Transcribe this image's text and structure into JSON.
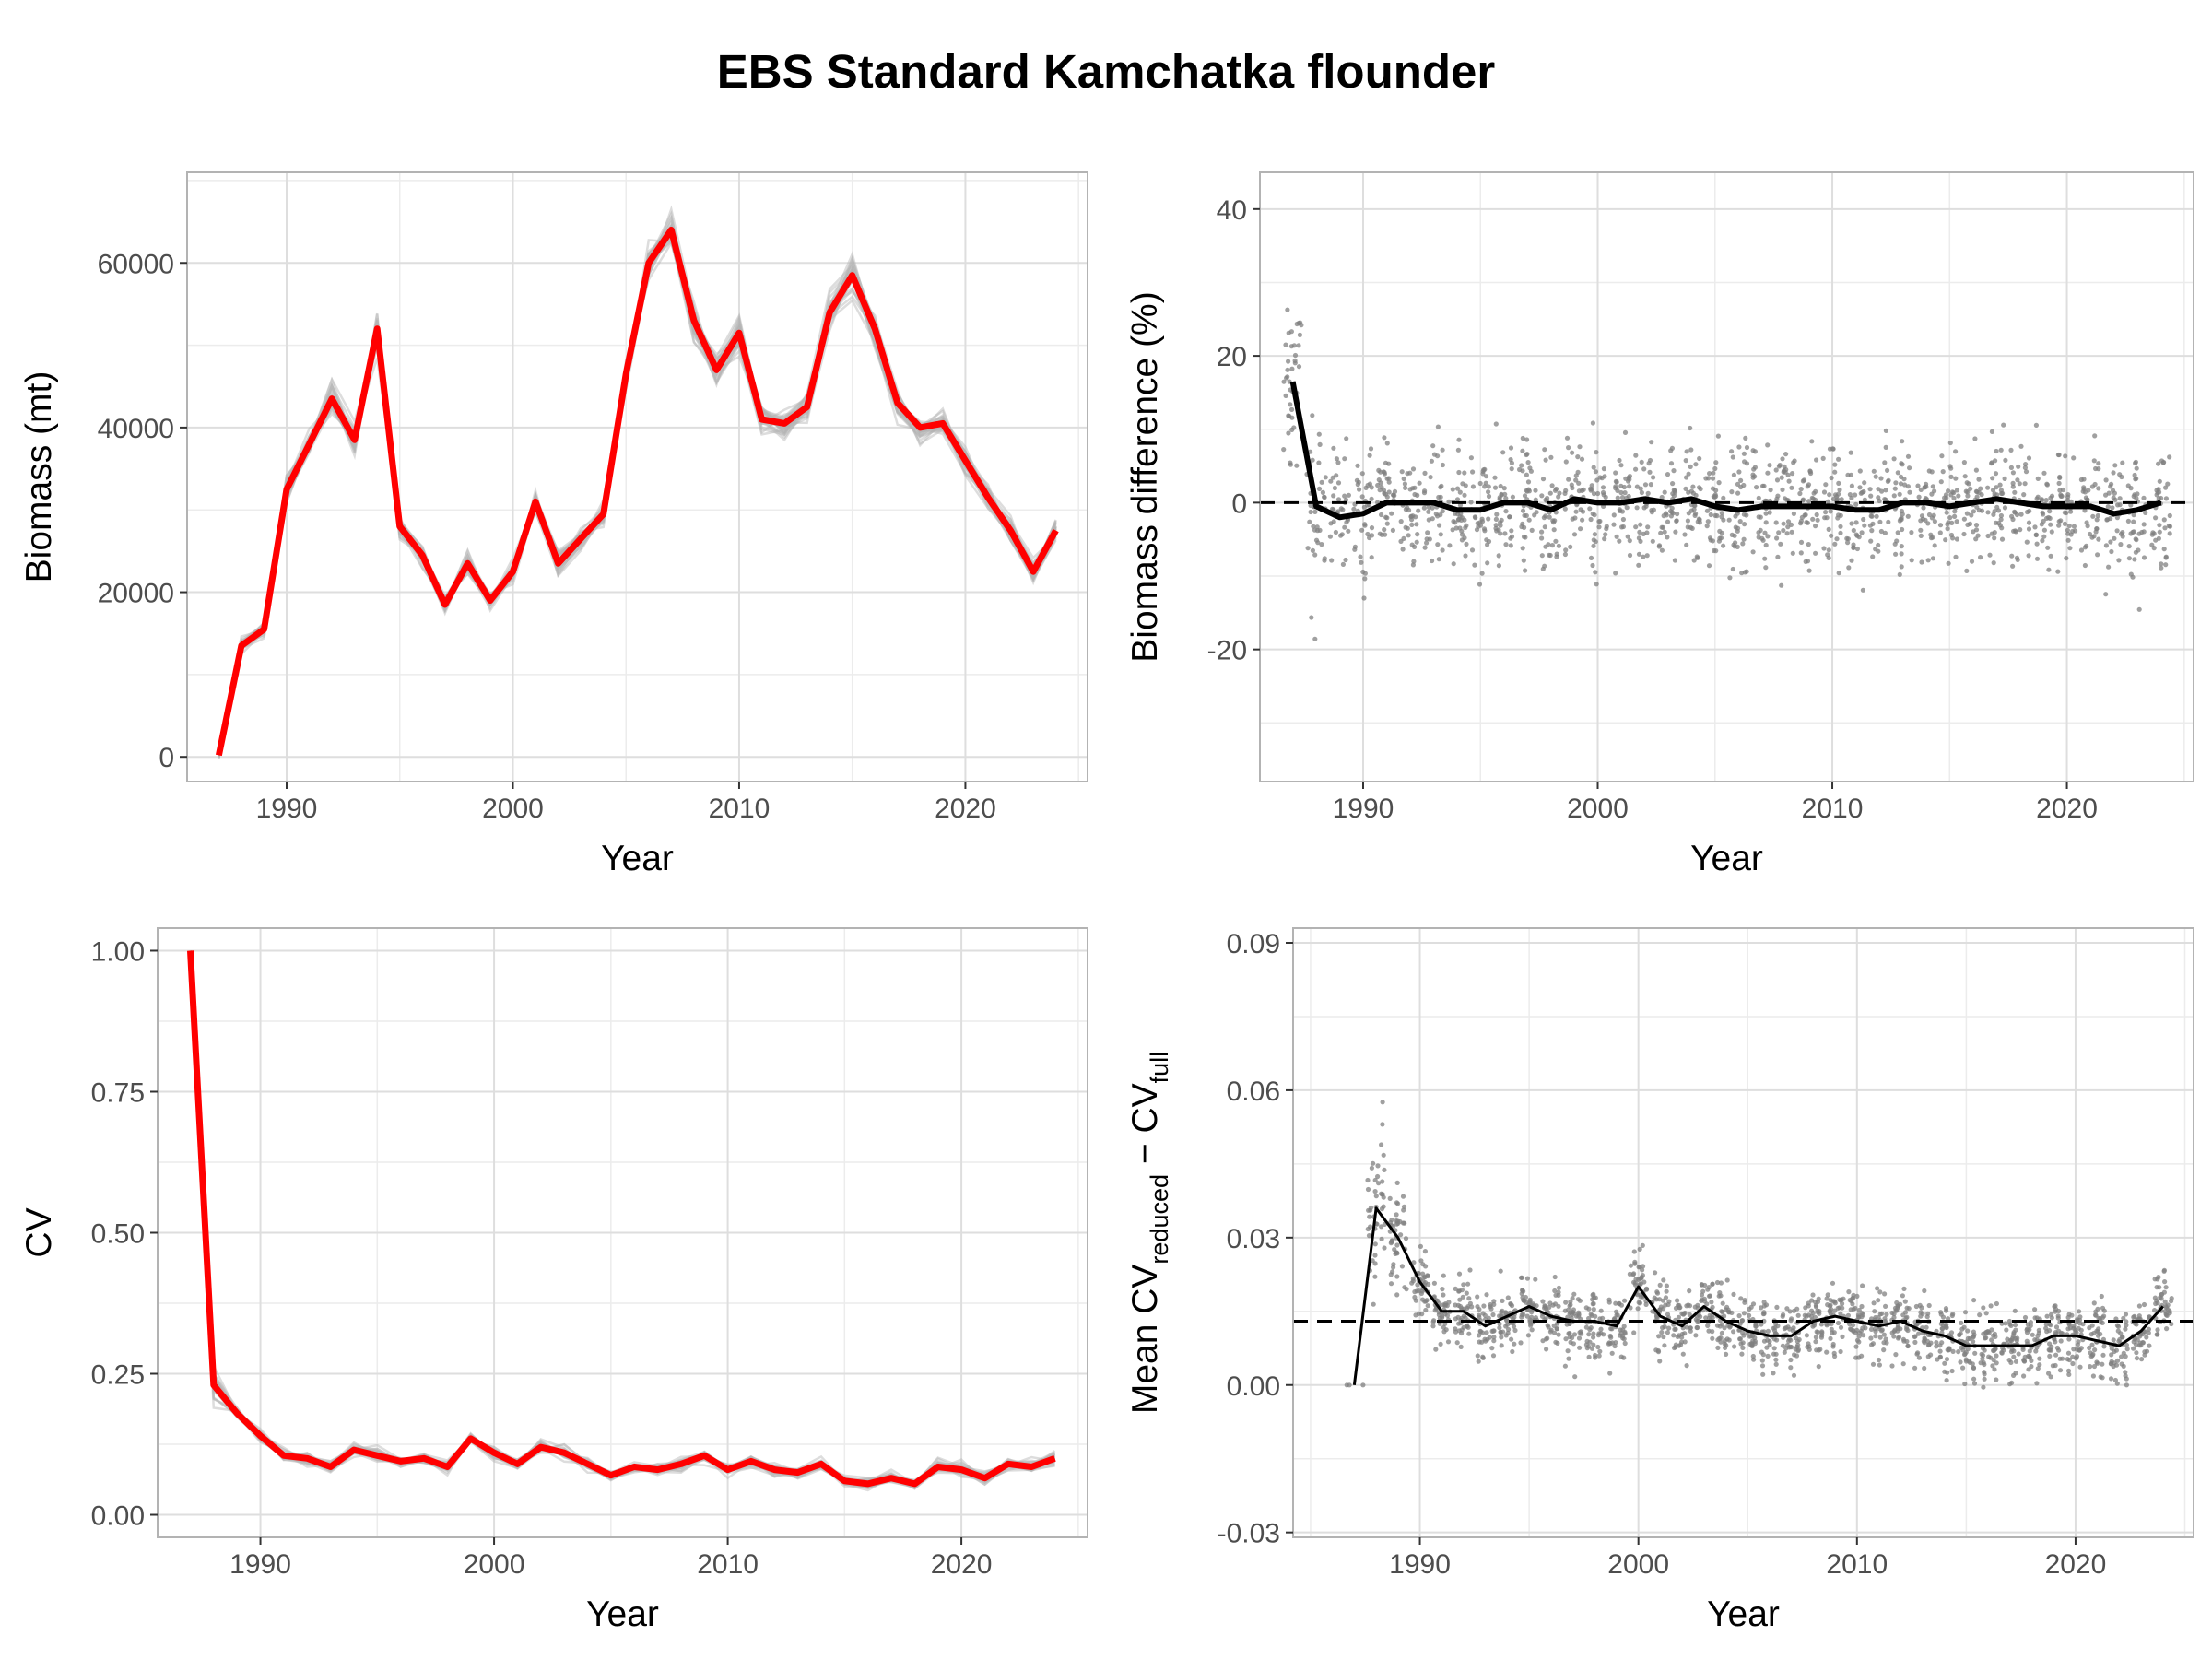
{
  "title": "EBS Standard Kamchatka flounder",
  "chart_data": [
    {
      "id": "biomass",
      "type": "line",
      "xlabel": "Year",
      "ylabel": "Biomass (mt)",
      "xlim": [
        1985.6,
        2025.4
      ],
      "ylim": [
        -3000,
        71000
      ],
      "xticks": [
        1990,
        2000,
        2010,
        2020
      ],
      "yticks": [
        0,
        20000,
        40000,
        60000
      ],
      "ytick_labels": [
        "0",
        "20000",
        "40000",
        "60000"
      ],
      "colors": {
        "highlight": "#ff0000",
        "replicates": "#b3b3b3"
      },
      "replicate_count": 30,
      "series": [
        {
          "x": [
            1987,
            1988,
            1989,
            1990,
            1991,
            1992,
            1993,
            1994,
            1995,
            1996,
            1997,
            1998,
            1999,
            2000,
            2001,
            2002,
            2003,
            2004,
            2005,
            2006,
            2007,
            2008,
            2009,
            2010,
            2011,
            2012,
            2013,
            2014,
            2015,
            2016,
            2017,
            2018,
            2019,
            2020,
            2021,
            2022,
            2023,
            2024
          ],
          "y": [
            200,
            13500,
            15500,
            32500,
            38000,
            43500,
            38500,
            52000,
            28000,
            24500,
            18500,
            23500,
            19000,
            22500,
            31000,
            23500,
            26500,
            29500,
            46500,
            60000,
            64000,
            53000,
            47000,
            51500,
            41000,
            40500,
            42500,
            54000,
            58500,
            52000,
            43000,
            40000,
            40500,
            36000,
            31500,
            27500,
            22500,
            27500
          ]
        }
      ]
    },
    {
      "id": "biomass-diff",
      "type": "scatter",
      "xlabel": "Year",
      "ylabel": "Biomass difference (%)",
      "xlim": [
        1985.6,
        2025.4
      ],
      "ylim": [
        -38,
        45
      ],
      "xticks": [
        1990,
        2000,
        2010,
        2020
      ],
      "yticks": [
        -20,
        0,
        20,
        40
      ],
      "ytick_labels": [
        "-20",
        "0",
        "20",
        "40"
      ],
      "reference_line": 0,
      "colors": {
        "points": "#808080",
        "mean": "#000000"
      },
      "series": [
        {
          "x": [
            1987,
            1988,
            1989,
            1990,
            1991,
            1992,
            1993,
            1994,
            1995,
            1996,
            1997,
            1998,
            1999,
            2000,
            2001,
            2002,
            2003,
            2004,
            2005,
            2006,
            2007,
            2008,
            2009,
            2010,
            2011,
            2012,
            2013,
            2014,
            2015,
            2016,
            2017,
            2018,
            2019,
            2020,
            2021,
            2022,
            2023,
            2024
          ],
          "y": [
            16.5,
            -0.5,
            -2,
            -1.5,
            0,
            0,
            0,
            -1,
            -1,
            0,
            0,
            -1,
            0.5,
            0,
            0,
            0.5,
            0,
            0.5,
            -0.5,
            -1,
            -0.5,
            -0.5,
            -0.5,
            -0.5,
            -1,
            -1,
            0,
            0,
            -0.5,
            0,
            0.5,
            0,
            -0.5,
            -0.5,
            -0.5,
            -1.5,
            -1,
            0
          ]
        }
      ]
    },
    {
      "id": "cv",
      "type": "line",
      "xlabel": "Year",
      "ylabel": "CV",
      "xlim": [
        1985.6,
        2025.4
      ],
      "ylim": [
        -0.04,
        1.04
      ],
      "xticks": [
        1990,
        2000,
        2010,
        2020
      ],
      "yticks": [
        0,
        0.25,
        0.5,
        0.75,
        1.0
      ],
      "ytick_labels": [
        "0.00",
        "0.25",
        "0.50",
        "0.75",
        "1.00"
      ],
      "colors": {
        "highlight": "#ff0000",
        "replicates": "#b3b3b3"
      },
      "series": [
        {
          "x": [
            1987,
            1988,
            1989,
            1990,
            1991,
            1992,
            1993,
            1994,
            1995,
            1996,
            1997,
            1998,
            1999,
            2000,
            2001,
            2002,
            2003,
            2004,
            2005,
            2006,
            2007,
            2008,
            2009,
            2010,
            2011,
            2012,
            2013,
            2014,
            2015,
            2016,
            2017,
            2018,
            2019,
            2020,
            2021,
            2022,
            2023,
            2024
          ],
          "y": [
            1.0,
            0.23,
            0.18,
            0.14,
            0.105,
            0.1,
            0.085,
            0.115,
            0.105,
            0.095,
            0.1,
            0.085,
            0.135,
            0.11,
            0.09,
            0.12,
            0.11,
            0.09,
            0.07,
            0.085,
            0.08,
            0.09,
            0.105,
            0.08,
            0.095,
            0.08,
            0.075,
            0.09,
            0.06,
            0.055,
            0.065,
            0.055,
            0.085,
            0.08,
            0.065,
            0.09,
            0.085,
            0.1
          ]
        }
      ]
    },
    {
      "id": "mean-cv-diff",
      "type": "scatter",
      "xlabel": "Year",
      "ylabel_main": "Mean CV",
      "ylabel_sub1": "reduced",
      "ylabel_minus": " − CV",
      "ylabel_sub2": "full",
      "xlim": [
        1984.2,
        2025.4
      ],
      "ylim": [
        -0.031,
        0.093
      ],
      "xticks": [
        1990,
        2000,
        2010,
        2020
      ],
      "yticks": [
        -0.03,
        0,
        0.03,
        0.06,
        0.09
      ],
      "ytick_labels": [
        "-0.03",
        "0.00",
        "0.03",
        "0.06",
        "0.09"
      ],
      "reference_line": 0.013,
      "colors": {
        "points": "#808080",
        "mean": "#000000"
      },
      "series": [
        {
          "x": [
            1987,
            1988,
            1989,
            1990,
            1991,
            1992,
            1993,
            1994,
            1995,
            1996,
            1997,
            1998,
            1999,
            2000,
            2001,
            2002,
            2003,
            2004,
            2005,
            2006,
            2007,
            2008,
            2009,
            2010,
            2011,
            2012,
            2013,
            2014,
            2015,
            2016,
            2017,
            2018,
            2019,
            2020,
            2021,
            2022,
            2023,
            2024
          ],
          "y": [
            0,
            0.036,
            0.03,
            0.021,
            0.015,
            0.015,
            0.012,
            0.014,
            0.016,
            0.014,
            0.013,
            0.013,
            0.012,
            0.02,
            0.014,
            0.012,
            0.016,
            0.013,
            0.011,
            0.01,
            0.01,
            0.013,
            0.014,
            0.013,
            0.012,
            0.013,
            0.011,
            0.01,
            0.008,
            0.008,
            0.008,
            0.008,
            0.01,
            0.01,
            0.009,
            0.008,
            0.011,
            0.016
          ]
        }
      ]
    }
  ]
}
